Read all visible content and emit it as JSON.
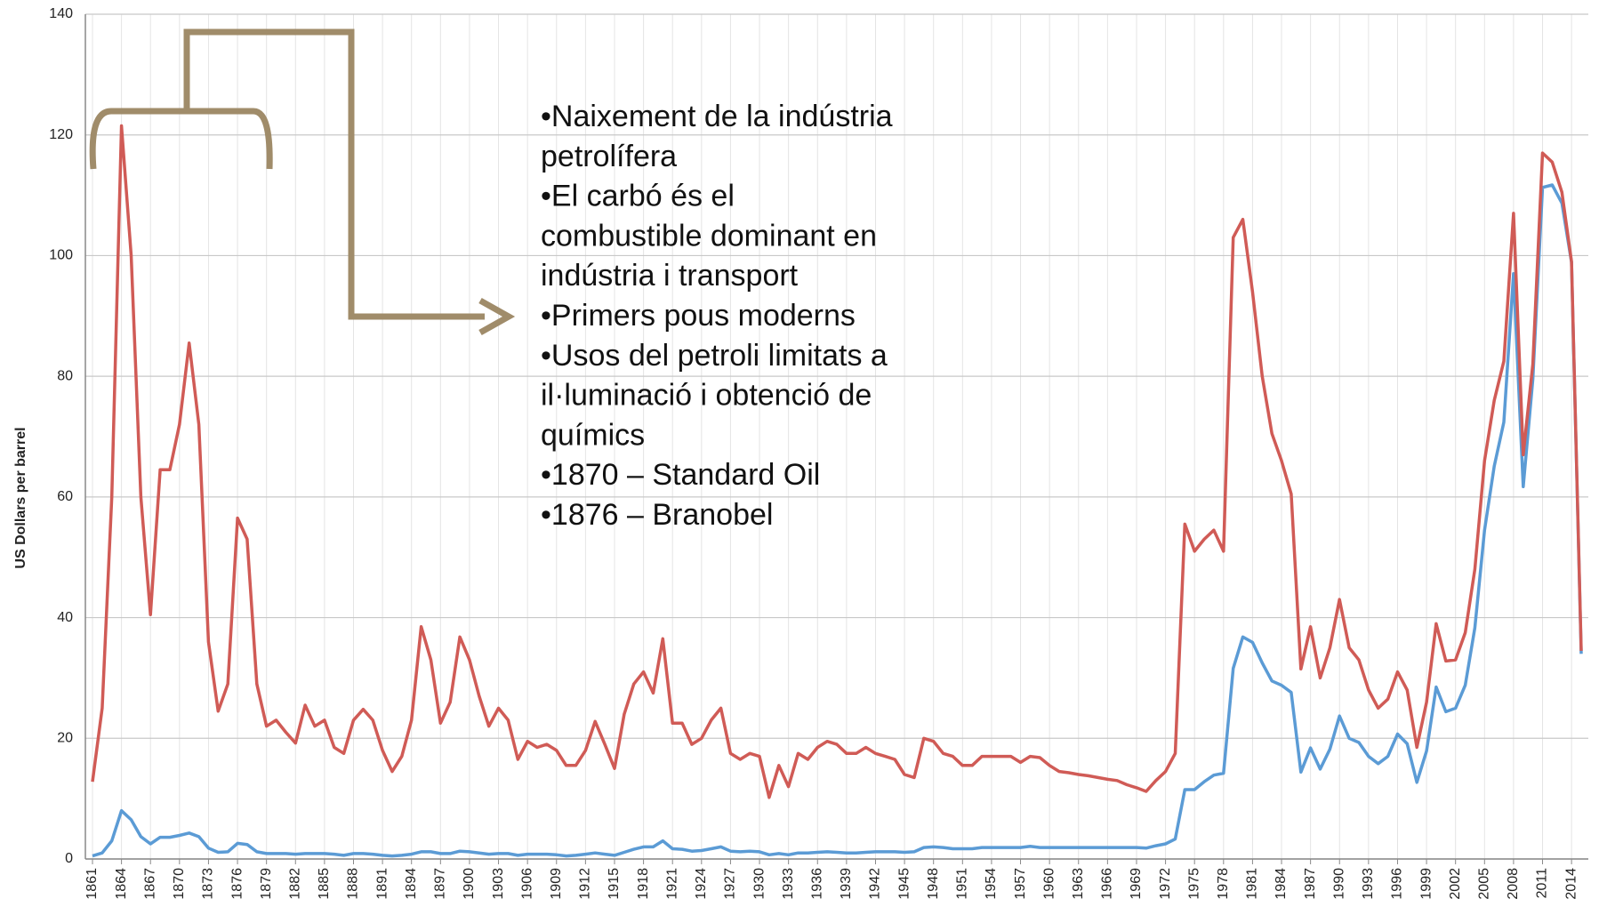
{
  "chart_data": {
    "type": "line",
    "y_axis_label": "US Dollars per barrel",
    "categories": [
      "1861",
      null,
      null,
      "1864",
      null,
      null,
      "1867",
      null,
      null,
      "1870",
      null,
      null,
      "1873",
      null,
      null,
      "1876",
      null,
      null,
      "1879",
      null,
      null,
      "1882",
      null,
      null,
      "1885",
      null,
      null,
      "1888",
      null,
      null,
      "1891",
      null,
      null,
      "1894",
      null,
      null,
      "1897",
      null,
      null,
      "1900",
      null,
      null,
      "1903",
      null,
      null,
      "1906",
      null,
      null,
      "1909",
      null,
      null,
      "1912",
      null,
      null,
      "1915",
      null,
      null,
      "1918",
      null,
      null,
      "1921",
      null,
      null,
      "1924",
      null,
      null,
      "1927",
      null,
      null,
      "1930",
      null,
      null,
      "1933",
      null,
      null,
      "1936",
      null,
      null,
      "1939",
      null,
      null,
      "1942",
      null,
      null,
      "1945",
      null,
      null,
      "1948",
      null,
      null,
      "1951",
      null,
      null,
      "1954",
      null,
      null,
      "1957",
      null,
      null,
      "1960",
      null,
      null,
      "1963",
      null,
      null,
      "1966",
      null,
      null,
      "1969",
      null,
      null,
      "1972",
      null,
      null,
      "1975",
      null,
      null,
      "1978",
      null,
      null,
      "1981",
      null,
      null,
      "1984",
      null,
      null,
      "1987",
      null,
      null,
      "1990",
      null,
      null,
      "1993",
      null,
      null,
      "1996",
      null,
      null,
      "1999",
      null,
      null,
      "2002",
      null,
      null,
      "2005",
      null,
      null,
      "2008",
      null,
      null,
      "2011",
      null,
      null,
      "2014",
      null
    ],
    "series": [
      {
        "color": "#d05b56",
        "values": [
          12.8,
          25,
          60,
          121.5,
          100,
          60,
          40.5,
          64.5,
          64.5,
          72,
          85.5,
          72,
          36,
          24.5,
          29,
          56.5,
          53,
          29,
          22,
          23,
          21,
          19.2,
          25.5,
          22,
          23,
          18.5,
          17.5,
          23,
          24.8,
          23,
          18,
          14.5,
          17,
          23,
          38.5,
          33,
          22.5,
          26,
          36.8,
          33,
          27,
          22,
          25,
          23,
          16.5,
          19.5,
          18.5,
          19,
          18,
          15.5,
          15.5,
          18,
          22.8,
          19,
          15,
          24,
          29,
          31,
          27.5,
          36.5,
          22.5,
          22.5,
          19,
          20,
          23,
          25,
          17.5,
          16.5,
          17.5,
          17,
          10.2,
          15.5,
          12,
          17.5,
          16.5,
          18.5,
          19.5,
          19,
          17.5,
          17.5,
          18.5,
          17.5,
          17,
          16.5,
          14,
          13.5,
          20,
          19.5,
          17.5,
          17,
          15.5,
          15.5,
          17,
          17,
          17,
          17,
          16,
          17,
          16.8,
          15.5,
          14.5,
          14.3,
          14,
          13.8,
          13.5,
          13.2,
          13,
          12.3,
          11.8,
          11.2,
          13,
          14.5,
          17.5,
          55.5,
          51,
          53,
          54.5,
          51,
          103,
          106,
          94,
          80,
          70.5,
          66,
          60.5,
          31.5,
          38.5,
          30,
          35,
          43,
          35,
          33,
          28,
          25,
          26.5,
          31,
          28,
          18.5,
          26,
          39,
          32.8,
          33,
          37.5,
          48,
          66,
          76,
          82.5,
          107,
          67,
          82,
          117,
          115.5,
          110.5,
          99,
          34.5
        ]
      },
      {
        "color": "#5b9bd5",
        "values": [
          0.5,
          1,
          3,
          8,
          6.5,
          3.7,
          2.5,
          3.6,
          3.6,
          3.9,
          4.3,
          3.7,
          1.8,
          1.1,
          1.2,
          2.6,
          2.4,
          1.2,
          0.9,
          0.9,
          0.9,
          0.8,
          0.9,
          0.9,
          0.9,
          0.8,
          0.6,
          0.9,
          0.9,
          0.8,
          0.6,
          0.5,
          0.6,
          0.8,
          1.2,
          1.2,
          0.9,
          0.9,
          1.3,
          1.2,
          1,
          0.8,
          0.9,
          0.9,
          0.6,
          0.8,
          0.8,
          0.8,
          0.7,
          0.5,
          0.6,
          0.8,
          1,
          0.8,
          0.6,
          1.1,
          1.6,
          2,
          2,
          3,
          1.7,
          1.6,
          1.3,
          1.4,
          1.7,
          2,
          1.3,
          1.2,
          1.3,
          1.2,
          0.7,
          0.9,
          0.7,
          1,
          1,
          1.1,
          1.2,
          1.1,
          1,
          1,
          1.1,
          1.2,
          1.2,
          1.2,
          1.1,
          1.2,
          1.9,
          2,
          1.9,
          1.7,
          1.7,
          1.7,
          1.9,
          1.9,
          1.9,
          1.9,
          1.9,
          2.1,
          1.9,
          1.9,
          1.9,
          1.9,
          1.9,
          1.9,
          1.9,
          1.9,
          1.9,
          1.9,
          1.9,
          1.8,
          2.2,
          2.5,
          3.3,
          11.5,
          11.5,
          12.8,
          13.9,
          14.2,
          31.6,
          36.8,
          35.9,
          32.5,
          29.5,
          28.8,
          27.6,
          14.4,
          18.4,
          14.9,
          18.2,
          23.7,
          20,
          19.3,
          17,
          15.8,
          17,
          20.7,
          19.1,
          12.7,
          17.9,
          28.5,
          24.4,
          25,
          28.8,
          38.3,
          54.5,
          65.1,
          72.4,
          97,
          61.7,
          79.5,
          111.3,
          111.7,
          108.7,
          98.9,
          34
        ]
      }
    ],
    "ylim": [
      0,
      140
    ],
    "yticks": [
      0,
      20,
      40,
      60,
      80,
      100,
      120,
      140
    ],
    "grid": true,
    "annotation": [
      "•Naixement de la indústria",
      "petrolífera",
      "•El carbó és el",
      "combustible dominant en",
      "indústria i transport",
      "•Primers pous moderns",
      "•Usos del petroli limitats a",
      "il·luminació i obtenció de",
      "químics",
      "•1870 – Standard Oil",
      "•1876 – Branobel"
    ]
  }
}
